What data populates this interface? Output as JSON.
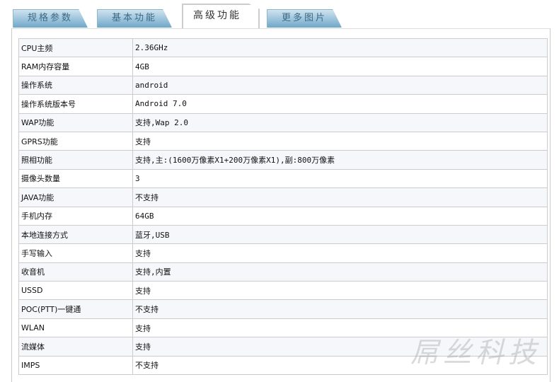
{
  "tabs": [
    "规格参数",
    "基本功能",
    "高级功能",
    "更多图片"
  ],
  "active_tab": 2,
  "rows": [
    [
      "CPU主频",
      "2.36GHz"
    ],
    [
      "RAM内存容量",
      "4GB"
    ],
    [
      "操作系统",
      "android"
    ],
    [
      "操作系统版本号",
      "Android 7.0"
    ],
    [
      "WAP功能",
      "支持,Wap 2.0"
    ],
    [
      "GPRS功能",
      "支持"
    ],
    [
      "照相功能",
      "支持,主:(1600万像素X1+200万像素X1),副:800万像素"
    ],
    [
      "摄像头数量",
      "3"
    ],
    [
      "JAVA功能",
      "不支持"
    ],
    [
      "手机内存",
      "64GB"
    ],
    [
      "本地连接方式",
      "蓝牙,USB"
    ],
    [
      "手写输入",
      "支持"
    ],
    [
      "收音机",
      "支持,内置"
    ],
    [
      "USSD",
      "支持"
    ],
    [
      "POC(PTT)一键通",
      "不支持"
    ],
    [
      "WLAN",
      "支持"
    ],
    [
      "流媒体",
      "支持"
    ],
    [
      "IMPS",
      "不支持"
    ]
  ],
  "watermark": "屌丝科技"
}
